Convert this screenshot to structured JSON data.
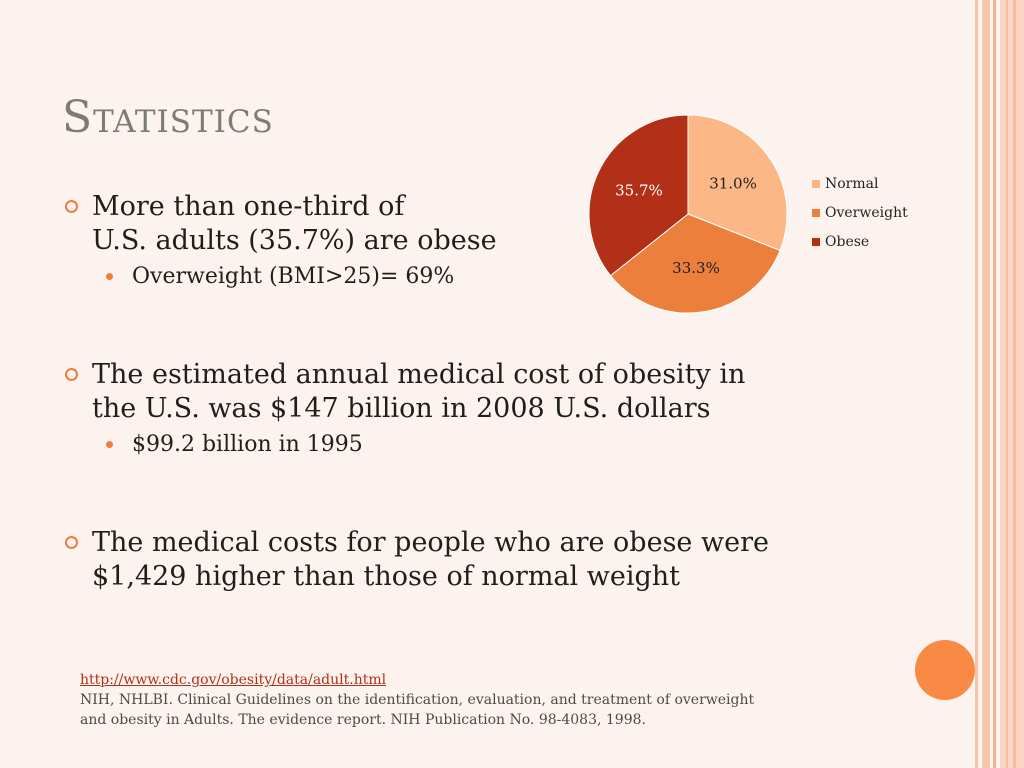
{
  "slide": {
    "title": "Statistics",
    "bullets": [
      {
        "text": "More than one-third of",
        "text2": "U.S. adults (35.7%) are obese",
        "sub": "Overweight (BMI>25)= 69%"
      },
      {
        "text": "The estimated annual medical cost of obesity in",
        "text2": "the U.S. was $147 billion in 2008 U.S. dollars",
        "sub": "$99.2 billion in 1995"
      },
      {
        "text": "The medical costs for people who are obese were",
        "text2": "$1,429 higher than those of normal weight",
        "sub": ""
      }
    ],
    "references": {
      "link": "http://www.cdc.gov/obesity/data/adult.html",
      "citation_line1": "NIH, NHLBI. Clinical Guidelines on the identification, evaluation, and treatment of overweight",
      "citation_line2": "and obesity in Adults. The evidence report. NIH Publication No. 98-4083, 1998."
    }
  },
  "colors": {
    "accent": "#f07c3c",
    "title": "#7b7b7b",
    "normal": "#fbb886",
    "overweight": "#ec7f3c",
    "obese": "#b22f18"
  },
  "chart_data": {
    "type": "pie",
    "categories": [
      "Normal",
      "Overweight",
      "Obese"
    ],
    "values": [
      31.0,
      33.3,
      35.7
    ],
    "labels": [
      "31.0%",
      "33.3%",
      "35.7%"
    ],
    "colors": [
      "#fbb886",
      "#ec7f3c",
      "#b22f18"
    ],
    "legend": "right"
  }
}
